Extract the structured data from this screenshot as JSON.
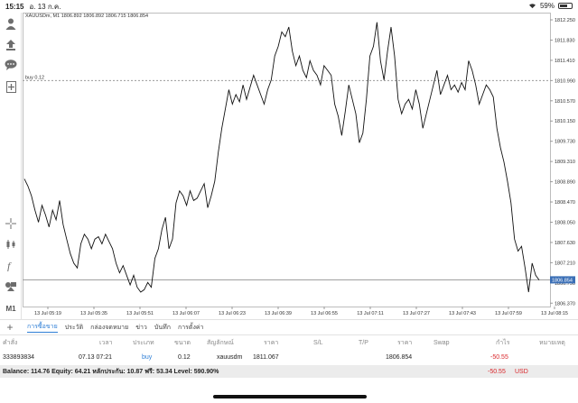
{
  "status": {
    "time": "15:15",
    "date": "อ. 13 ก.ค.",
    "battery": "59%",
    "battery_level": 0.59
  },
  "chart": {
    "title": "XAUUSDm, M1 1806.892 1806.892 1806.715 1806.854",
    "buy_label": "buy 0.12",
    "current_price": "1806.854"
  },
  "chart_data": {
    "type": "line",
    "symbol": "XAUUSDm",
    "timeframe": "M1",
    "ylim": [
      1806.3,
      1812.4
    ],
    "y_ticks": [
      "1812.250",
      "1811.830",
      "1811.410",
      "1810.990",
      "1810.570",
      "1810.150",
      "1809.730",
      "1809.310",
      "1808.890",
      "1808.470",
      "1808.050",
      "1807.630",
      "1807.210",
      "1806.790",
      "1806.370"
    ],
    "x_ticks": [
      "13 Jul 05:19",
      "13 Jul 05:35",
      "13 Jul 05:51",
      "13 Jul 06:07",
      "13 Jul 06:23",
      "13 Jul 06:39",
      "13 Jul 06:55",
      "13 Jul 07:11",
      "13 Jul 07:27",
      "13 Jul 07:43",
      "13 Jul 07:59",
      "13 Jul 08:15"
    ],
    "series": [
      {
        "values": [
          1808.95,
          1808.8,
          1808.6,
          1808.3,
          1808.05,
          1808.4,
          1808.2,
          1807.95,
          1808.3,
          1808.1,
          1808.5,
          1808.0,
          1807.7,
          1807.4,
          1807.2,
          1807.1,
          1807.6,
          1807.8,
          1807.7,
          1807.5,
          1807.7,
          1807.75,
          1807.6,
          1807.8,
          1807.65,
          1807.5,
          1807.2,
          1807.0,
          1807.15,
          1806.95,
          1806.75,
          1806.95,
          1806.7,
          1806.6,
          1806.65,
          1806.8,
          1806.7,
          1807.3,
          1807.5,
          1807.9,
          1808.15,
          1807.5,
          1807.7,
          1808.45,
          1808.7,
          1808.6,
          1808.4,
          1808.7,
          1808.5,
          1808.55,
          1808.7,
          1808.85,
          1808.35,
          1808.6,
          1808.9,
          1809.5,
          1810.0,
          1810.4,
          1810.8,
          1810.5,
          1810.7,
          1810.55,
          1810.9,
          1810.6,
          1810.85,
          1811.1,
          1810.9,
          1810.7,
          1810.5,
          1810.8,
          1811.0,
          1811.5,
          1811.7,
          1812.0,
          1811.9,
          1812.1,
          1811.6,
          1811.3,
          1811.5,
          1811.2,
          1811.05,
          1811.4,
          1811.2,
          1811.1,
          1810.9,
          1811.3,
          1811.2,
          1811.1,
          1810.5,
          1810.25,
          1809.85,
          1810.35,
          1810.9,
          1810.6,
          1810.3,
          1809.7,
          1809.9,
          1810.6,
          1811.5,
          1811.7,
          1812.2,
          1811.4,
          1811.0,
          1811.6,
          1812.1,
          1811.5,
          1810.6,
          1810.3,
          1810.5,
          1810.6,
          1810.4,
          1810.8,
          1810.5,
          1810.0,
          1810.3,
          1810.6,
          1810.9,
          1811.2,
          1810.7,
          1810.9,
          1811.1,
          1810.8,
          1810.9,
          1810.75,
          1810.95,
          1810.8,
          1811.4,
          1811.2,
          1810.9,
          1810.5,
          1810.7,
          1810.9,
          1810.8,
          1810.65,
          1810.0,
          1809.6,
          1809.3,
          1808.9,
          1808.45,
          1807.7,
          1807.45,
          1807.55,
          1807.1,
          1806.6,
          1807.2,
          1806.95,
          1806.85
        ]
      }
    ],
    "buy_level": 1810.99,
    "current_level": 1806.854,
    "grid": false
  },
  "tabs": [
    "การซื้อขาย",
    "ประวัติ",
    "กล่องจดหมาย",
    "ข่าว",
    "บันทึก",
    "การตั้งค่า"
  ],
  "table": {
    "headers": [
      "คำสั่ง",
      "เวลา",
      "ประเภท",
      "ขนาด",
      "สัญลักษณ์",
      "ราคา",
      "S/L",
      "T/P",
      "ราคา",
      "Swap",
      "กำไร",
      "หมายเหตุ"
    ],
    "row": {
      "ticket": "333893834",
      "time": "07.13 07:21",
      "type": "buy",
      "size": "0.12",
      "symbol": "xauusdm",
      "open_price": "1811.067",
      "price": "1806.854",
      "profit": "-50.55"
    }
  },
  "balance": {
    "text": "Balance: 114.76 Equity: 64.21 หลักประกัน: 10.87 ฟรี: 53.34 Level: 590.90%",
    "profit": "-50.55",
    "currency": "USD"
  },
  "colors": {
    "accent": "#2f7fd6",
    "negative": "#d9262a",
    "price_tag": "#3b6fb6"
  },
  "icons": [
    "person-icon",
    "upload-icon",
    "chat-icon",
    "add-page-icon",
    "crosshair-icon",
    "candles-icon",
    "function-icon",
    "objects-icon",
    "timeframe-m1"
  ]
}
